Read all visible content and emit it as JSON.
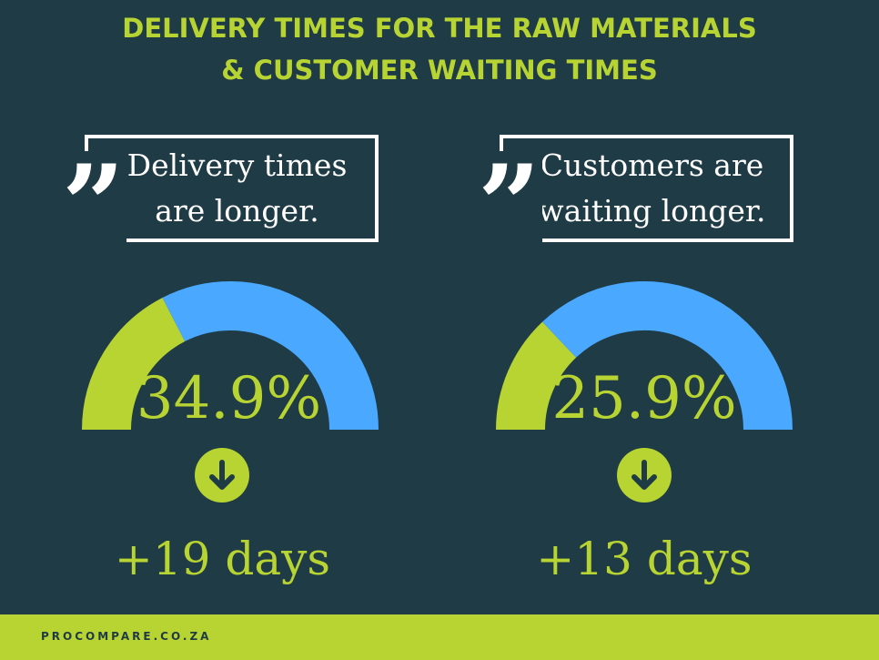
{
  "title": {
    "line1": "DELIVERY TIMES FOR THE RAW MATERIALS",
    "line2": "& CUSTOMER WAITING TIMES"
  },
  "colors": {
    "background": "#1f3b45",
    "accent_green": "#b8d432",
    "gauge_blue": "#4aa8ff",
    "text_white": "#ffffff"
  },
  "icons": {
    "quote": "quote-icon",
    "arrow": "arrow-down-circle-icon"
  },
  "quote_mark": "”",
  "chart_data": [
    {
      "type": "gauge",
      "quote_line1": "Delivery times",
      "quote_line2": "are longer.",
      "value": 34.9,
      "value_label": "34.9%",
      "range": [
        0,
        100
      ],
      "days_label": "+19 days"
    },
    {
      "type": "gauge",
      "quote_line1": "Customers are",
      "quote_line2": "waiting longer.",
      "value": 25.9,
      "value_label": "25.9%",
      "range": [
        0,
        100
      ],
      "days_label": "+13 days"
    }
  ],
  "footer": {
    "text": "PROCOMPARE.CO.ZA"
  }
}
